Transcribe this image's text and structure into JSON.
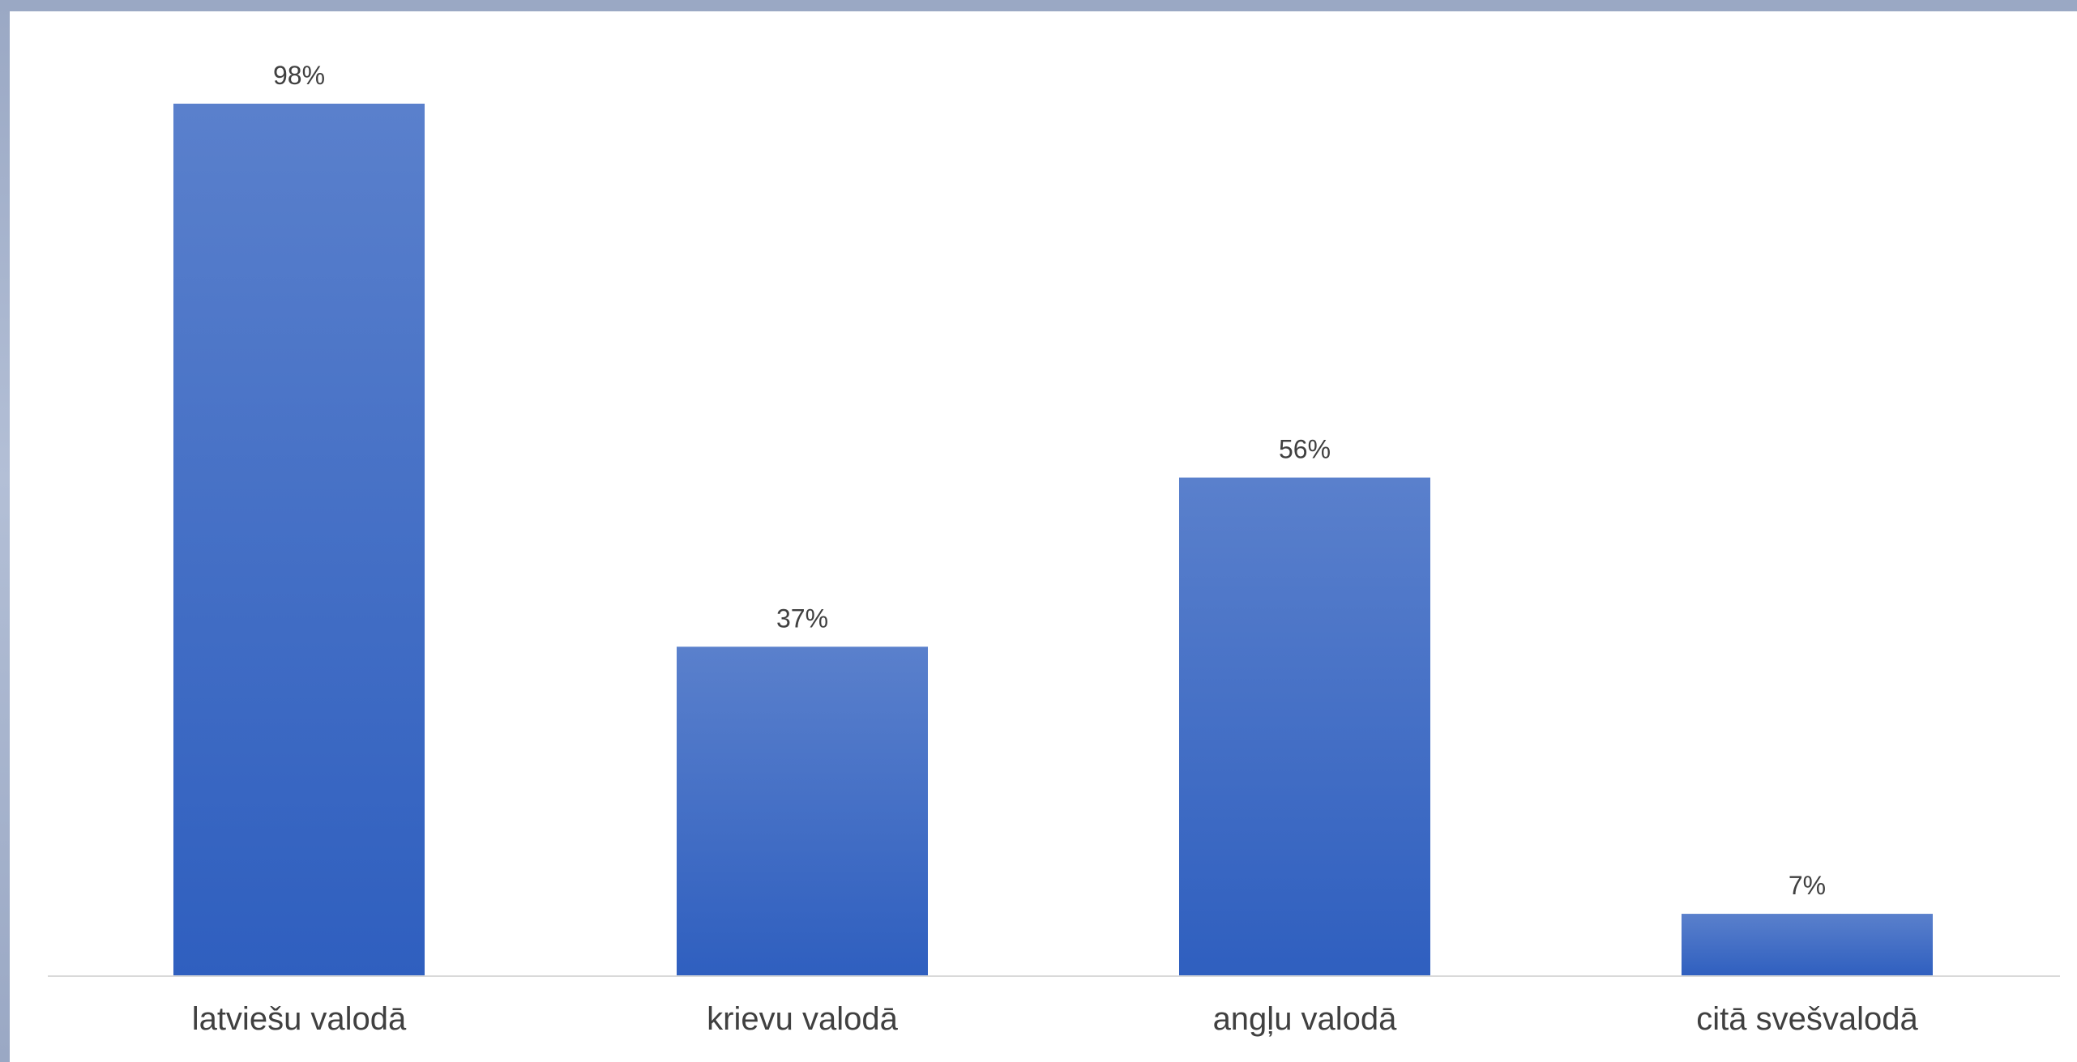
{
  "chart_data": {
    "type": "bar",
    "categories": [
      "latviešu valodā",
      "krievu valodā",
      "angļu valodā",
      "citā svešvalodā"
    ],
    "values": [
      98,
      37,
      56,
      7
    ],
    "data_labels": [
      "98%",
      "37%",
      "56%",
      "7%"
    ],
    "title": "",
    "xlabel": "",
    "ylabel": "",
    "ylim": [
      0,
      100
    ],
    "grid": false,
    "legend": "none",
    "colors": {
      "bar_top": "#5a80cc",
      "bar_bottom": "#2f5fbf",
      "axis": "#d9d9d9",
      "text": "#404040",
      "frame": "#9aa8c4"
    }
  }
}
